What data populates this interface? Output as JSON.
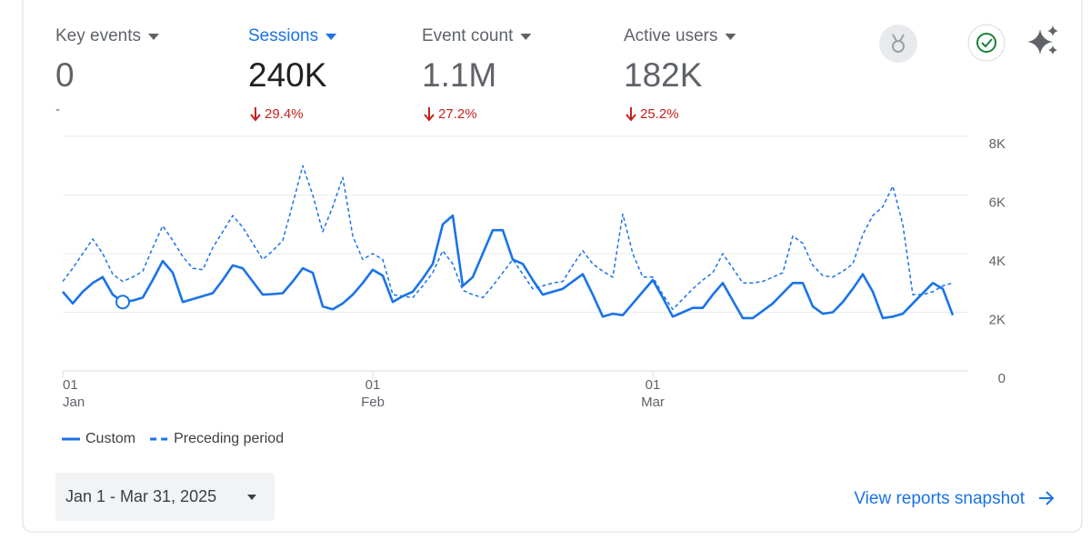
{
  "metrics": [
    {
      "label": "Key events",
      "value": "0",
      "change": "-"
    },
    {
      "label": "Sessions",
      "value": "240K",
      "change": "29.4%",
      "trend": "down",
      "selected": true
    },
    {
      "label": "Event count",
      "value": "1.1M",
      "change": "27.2%",
      "trend": "down"
    },
    {
      "label": "Active users",
      "value": "182K",
      "change": "25.2%",
      "trend": "down"
    }
  ],
  "chart_data": {
    "type": "line",
    "x": [
      "2025-01-01",
      "2025-01-02",
      "2025-01-03",
      "2025-01-04",
      "2025-01-05",
      "2025-01-06",
      "2025-01-07",
      "2025-01-08",
      "2025-01-09",
      "2025-01-10",
      "2025-01-11",
      "2025-01-12",
      "2025-01-13",
      "2025-01-14",
      "2025-01-15",
      "2025-01-16",
      "2025-01-17",
      "2025-01-18",
      "2025-01-19",
      "2025-01-20",
      "2025-01-21",
      "2025-01-22",
      "2025-01-23",
      "2025-01-24",
      "2025-01-25",
      "2025-01-26",
      "2025-01-27",
      "2025-01-28",
      "2025-01-29",
      "2025-01-30",
      "2025-01-31",
      "2025-02-01",
      "2025-02-02",
      "2025-02-03",
      "2025-02-04",
      "2025-02-05",
      "2025-02-06",
      "2025-02-07",
      "2025-02-08",
      "2025-02-09",
      "2025-02-10",
      "2025-02-11",
      "2025-02-12",
      "2025-02-13",
      "2025-02-14",
      "2025-02-15",
      "2025-02-16",
      "2025-02-17",
      "2025-02-18",
      "2025-02-19",
      "2025-02-20",
      "2025-02-21",
      "2025-02-22",
      "2025-02-23",
      "2025-02-24",
      "2025-02-25",
      "2025-02-26",
      "2025-02-27",
      "2025-02-28",
      "2025-03-01",
      "2025-03-02",
      "2025-03-03",
      "2025-03-04",
      "2025-03-05",
      "2025-03-06",
      "2025-03-07",
      "2025-03-08",
      "2025-03-09",
      "2025-03-10",
      "2025-03-11",
      "2025-03-12",
      "2025-03-13",
      "2025-03-14",
      "2025-03-15",
      "2025-03-16",
      "2025-03-17",
      "2025-03-18",
      "2025-03-19",
      "2025-03-20",
      "2025-03-21",
      "2025-03-22",
      "2025-03-23",
      "2025-03-24",
      "2025-03-25",
      "2025-03-26",
      "2025-03-27",
      "2025-03-28",
      "2025-03-29",
      "2025-03-30",
      "2025-03-31"
    ],
    "xticks": [
      {
        "value": "2025-01-01",
        "label": [
          "01",
          "Jan"
        ]
      },
      {
        "value": "2025-02-01",
        "label": [
          "01",
          "Feb"
        ]
      },
      {
        "value": "2025-03-01",
        "label": [
          "01",
          "Mar"
        ]
      }
    ],
    "ylim": [
      0,
      8000
    ],
    "yticks": [
      0,
      {
        "value": 2000,
        "label": "2K"
      },
      {
        "value": 4000,
        "label": "4K"
      },
      {
        "value": 6000,
        "label": "6K"
      },
      {
        "value": 8000,
        "label": "8K"
      }
    ],
    "grid": true,
    "series": [
      {
        "name": "Custom",
        "color": "#1a73e8",
        "marker_index": 6,
        "values": [
          2700,
          2300,
          2700,
          3000,
          3200,
          2600,
          2350,
          2400,
          2500,
          3100,
          3750,
          3350,
          2350,
          2450,
          2550,
          2650,
          3100,
          3600,
          3500,
          3050,
          2600,
          2620,
          2650,
          3050,
          3500,
          3350,
          2200,
          2100,
          2300,
          2600,
          3000,
          3450,
          3250,
          2350,
          2550,
          2700,
          3150,
          3650,
          5000,
          5300,
          2900,
          3200,
          4000,
          4800,
          4800,
          3800,
          3650,
          3100,
          2600,
          2700,
          2800,
          3050,
          3300,
          2600,
          1850,
          1950,
          1900,
          2300,
          2700,
          3100,
          2500,
          1850,
          2000,
          2150,
          2150,
          2600,
          3000,
          2400,
          1800,
          1800,
          2050,
          2300,
          2650,
          3000,
          3000,
          2200,
          1950,
          2000,
          2350,
          2800,
          3300,
          2700,
          1800,
          1850,
          1950,
          2300,
          2650,
          3000,
          2800,
          1900
        ]
      },
      {
        "name": "Preceding period",
        "color": "#1a73e8",
        "dashed": true,
        "values": [
          3050,
          3500,
          4000,
          4500,
          4000,
          3300,
          3050,
          3200,
          3400,
          4200,
          4950,
          4450,
          3900,
          3500,
          3450,
          4200,
          4750,
          5300,
          4900,
          4350,
          3800,
          4100,
          4450,
          5700,
          7000,
          6000,
          4750,
          5600,
          6600,
          4600,
          3800,
          4000,
          3800,
          2600,
          2550,
          2500,
          2900,
          3350,
          4100,
          3650,
          2750,
          2600,
          2500,
          2900,
          3350,
          3800,
          3300,
          2800,
          2900,
          3000,
          3050,
          3600,
          4100,
          3650,
          3400,
          3200,
          5350,
          4000,
          3200,
          3200,
          2600,
          2100,
          2450,
          2800,
          3100,
          3350,
          4000,
          3500,
          3000,
          3000,
          3050,
          3200,
          3350,
          4600,
          4350,
          3600,
          3250,
          3200,
          3400,
          3650,
          4650,
          5300,
          5600,
          6300,
          5000,
          2600,
          2600,
          2700,
          2900,
          3000
        ]
      }
    ]
  },
  "date_range": "Jan 1 - Mar 31, 2025",
  "link": "View reports snapshot"
}
